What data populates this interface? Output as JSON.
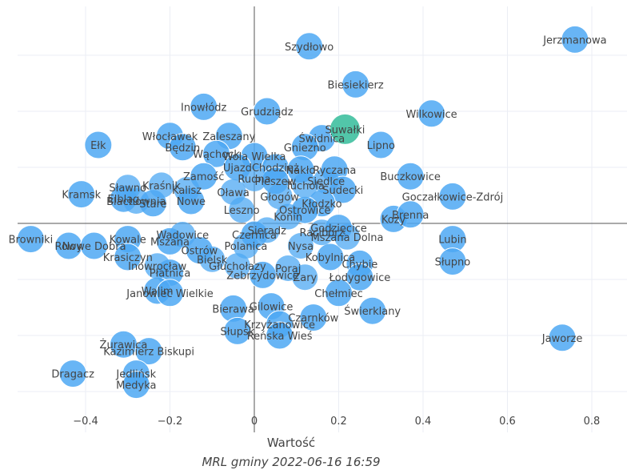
{
  "chart_data": {
    "type": "scatter",
    "xlabel": "Wartość",
    "ylabel": "",
    "caption": "MRL gminy 2022-06-16 16:59",
    "xlim": [
      -0.56,
      0.9
    ],
    "ylim": [
      -1.0,
      1.0
    ],
    "xticks": [
      "−0.4",
      "−0.2",
      "0",
      "0.2",
      "0.4",
      "0.6",
      "0.8"
    ],
    "xtick_values": [
      -0.4,
      -0.2,
      0,
      0.2,
      0.4,
      0.6,
      0.8
    ],
    "colors": {
      "point": "#4ea8f3",
      "highlight": "#3fc0a0",
      "axis": "#555555",
      "grid": "#ebeef4"
    },
    "highlight": {
      "name": "Suwałki",
      "x": 0.215,
      "y": 0.42
    },
    "points": [
      {
        "name": "Jerzmanowa",
        "x": 0.76,
        "y": 0.82
      },
      {
        "name": "Szydłowo",
        "x": 0.13,
        "y": 0.79
      },
      {
        "name": "Biesiekierz",
        "x": 0.24,
        "y": 0.62
      },
      {
        "name": "Inowłódz",
        "x": -0.12,
        "y": 0.52
      },
      {
        "name": "Grudziądz",
        "x": 0.03,
        "y": 0.5
      },
      {
        "name": "Wilkowice",
        "x": 0.42,
        "y": 0.49
      },
      {
        "name": "Włocławek",
        "x": -0.2,
        "y": 0.39
      },
      {
        "name": "Zaleszany",
        "x": -0.06,
        "y": 0.39
      },
      {
        "name": "Świdnica",
        "x": 0.16,
        "y": 0.38
      },
      {
        "name": "Ełk",
        "x": -0.37,
        "y": 0.35
      },
      {
        "name": "Będzin",
        "x": -0.17,
        "y": 0.34
      },
      {
        "name": "Gniezno",
        "x": 0.12,
        "y": 0.34
      },
      {
        "name": "Lipno",
        "x": 0.3,
        "y": 0.35
      },
      {
        "name": "Wąchock",
        "x": -0.09,
        "y": 0.31
      },
      {
        "name": "Wola Wielka",
        "x": 0.0,
        "y": 0.3
      },
      {
        "name": "Ujazd",
        "x": -0.04,
        "y": 0.25
      },
      {
        "name": "Chodzież",
        "x": 0.05,
        "y": 0.25
      },
      {
        "name": "Nakło",
        "x": 0.11,
        "y": 0.24
      },
      {
        "name": "Ryczana",
        "x": 0.19,
        "y": 0.24
      },
      {
        "name": "Buczkowice",
        "x": 0.37,
        "y": 0.21
      },
      {
        "name": "Zamość",
        "x": -0.12,
        "y": 0.21
      },
      {
        "name": "Pleszew",
        "x": 0.05,
        "y": 0.19
      },
      {
        "name": "Sudecki",
        "x": 0.21,
        "y": 0.15
      },
      {
        "name": "Kramsk",
        "x": -0.41,
        "y": 0.13
      },
      {
        "name": "Goczałkowice-Zdrój",
        "x": 0.47,
        "y": 0.12
      },
      {
        "name": "Elbląg",
        "x": -0.31,
        "y": 0.11
      },
      {
        "name": "Stare",
        "x": -0.24,
        "y": 0.09
      },
      {
        "name": "Nowe",
        "x": -0.15,
        "y": 0.1
      },
      {
        "name": "Kłodzko",
        "x": 0.16,
        "y": 0.09
      },
      {
        "name": "Kozy",
        "x": 0.33,
        "y": 0.02
      },
      {
        "name": "Brenna",
        "x": 0.37,
        "y": 0.04
      },
      {
        "name": "Ostrowice",
        "x": 0.12,
        "y": 0.06
      },
      {
        "name": "Godzięcice",
        "x": 0.2,
        "y": -0.02
      },
      {
        "name": "Browniki",
        "x": -0.53,
        "y": -0.07
      },
      {
        "name": "Rowy",
        "x": -0.44,
        "y": -0.1
      },
      {
        "name": "Nowe Dobra",
        "x": -0.38,
        "y": -0.1
      },
      {
        "name": "Kowale",
        "x": -0.3,
        "y": -0.07
      },
      {
        "name": "Mszana",
        "x": -0.2,
        "y": -0.08
      },
      {
        "name": "Lubin",
        "x": 0.47,
        "y": -0.07
      },
      {
        "name": "Słupno",
        "x": 0.47,
        "y": -0.17
      },
      {
        "name": "Krasiczyn",
        "x": -0.3,
        "y": -0.15
      },
      {
        "name": "Ostrów",
        "x": -0.13,
        "y": -0.12
      },
      {
        "name": "Czernica",
        "x": 0.0,
        "y": -0.05
      },
      {
        "name": "Kobylnica",
        "x": 0.18,
        "y": -0.15
      },
      {
        "name": "Chybie",
        "x": 0.25,
        "y": -0.18
      },
      {
        "name": "Płatnica",
        "x": -0.2,
        "y": -0.22
      },
      {
        "name": "Zebrzydowice",
        "x": 0.02,
        "y": -0.23
      },
      {
        "name": "Łodygowice",
        "x": 0.25,
        "y": -0.24
      },
      {
        "name": "Walim",
        "x": -0.23,
        "y": -0.3
      },
      {
        "name": "Janowiec Wielkie",
        "x": -0.2,
        "y": -0.31
      },
      {
        "name": "Chełmiec",
        "x": 0.2,
        "y": -0.31
      },
      {
        "name": "Bierawa",
        "x": -0.05,
        "y": -0.38
      },
      {
        "name": "Gilowice",
        "x": 0.04,
        "y": -0.37
      },
      {
        "name": "Czarnków",
        "x": 0.14,
        "y": -0.42
      },
      {
        "name": "Świerklany",
        "x": 0.28,
        "y": -0.39
      },
      {
        "name": "Krzyżanowice",
        "x": 0.06,
        "y": -0.45
      },
      {
        "name": "Słupsk",
        "x": -0.04,
        "y": -0.48
      },
      {
        "name": "Reńska Wieś",
        "x": 0.06,
        "y": -0.5
      },
      {
        "name": "Jaworze",
        "x": 0.73,
        "y": -0.51
      },
      {
        "name": "Żurawica",
        "x": -0.31,
        "y": -0.54
      },
      {
        "name": "Kazimierz Biskupi",
        "x": -0.25,
        "y": -0.57
      },
      {
        "name": "Dragacz",
        "x": -0.43,
        "y": -0.67
      },
      {
        "name": "Jedlińsk",
        "x": -0.28,
        "y": -0.67
      },
      {
        "name": "Medyka",
        "x": -0.28,
        "y": -0.72
      }
    ],
    "cluster_labels": [
      {
        "name": "Kraśnik",
        "x": -0.22,
        "y": 0.17
      },
      {
        "name": "Sławno",
        "x": -0.3,
        "y": 0.16
      },
      {
        "name": "Blachownia",
        "x": -0.28,
        "y": 0.1
      },
      {
        "name": "Kalisz",
        "x": -0.16,
        "y": 0.15
      },
      {
        "name": "Oława",
        "x": -0.05,
        "y": 0.14
      },
      {
        "name": "Tuchola",
        "x": 0.12,
        "y": 0.17
      },
      {
        "name": "Głogów",
        "x": 0.06,
        "y": 0.12
      },
      {
        "name": "Konin",
        "x": 0.08,
        "y": 0.03
      },
      {
        "name": "Leszno",
        "x": -0.03,
        "y": 0.06
      },
      {
        "name": "Sieradz",
        "x": 0.03,
        "y": -0.03
      },
      {
        "name": "Polanica",
        "x": -0.02,
        "y": -0.1
      },
      {
        "name": "Nysa",
        "x": 0.11,
        "y": -0.1
      },
      {
        "name": "Racibórz",
        "x": 0.16,
        "y": -0.04
      },
      {
        "name": "Inowrocław",
        "x": -0.23,
        "y": -0.19
      },
      {
        "name": "Bielsk",
        "x": -0.1,
        "y": -0.16
      },
      {
        "name": "Głuchołazy",
        "x": -0.04,
        "y": -0.19
      },
      {
        "name": "Poraj",
        "x": 0.08,
        "y": -0.2
      },
      {
        "name": "Żary",
        "x": 0.12,
        "y": -0.24
      },
      {
        "name": "Mszana Dolna",
        "x": 0.22,
        "y": -0.06
      },
      {
        "name": "Wadowice",
        "x": -0.17,
        "y": -0.05
      },
      {
        "name": "Rudna",
        "x": 0.0,
        "y": 0.2
      },
      {
        "name": "Siedlce",
        "x": 0.17,
        "y": 0.19
      }
    ]
  }
}
